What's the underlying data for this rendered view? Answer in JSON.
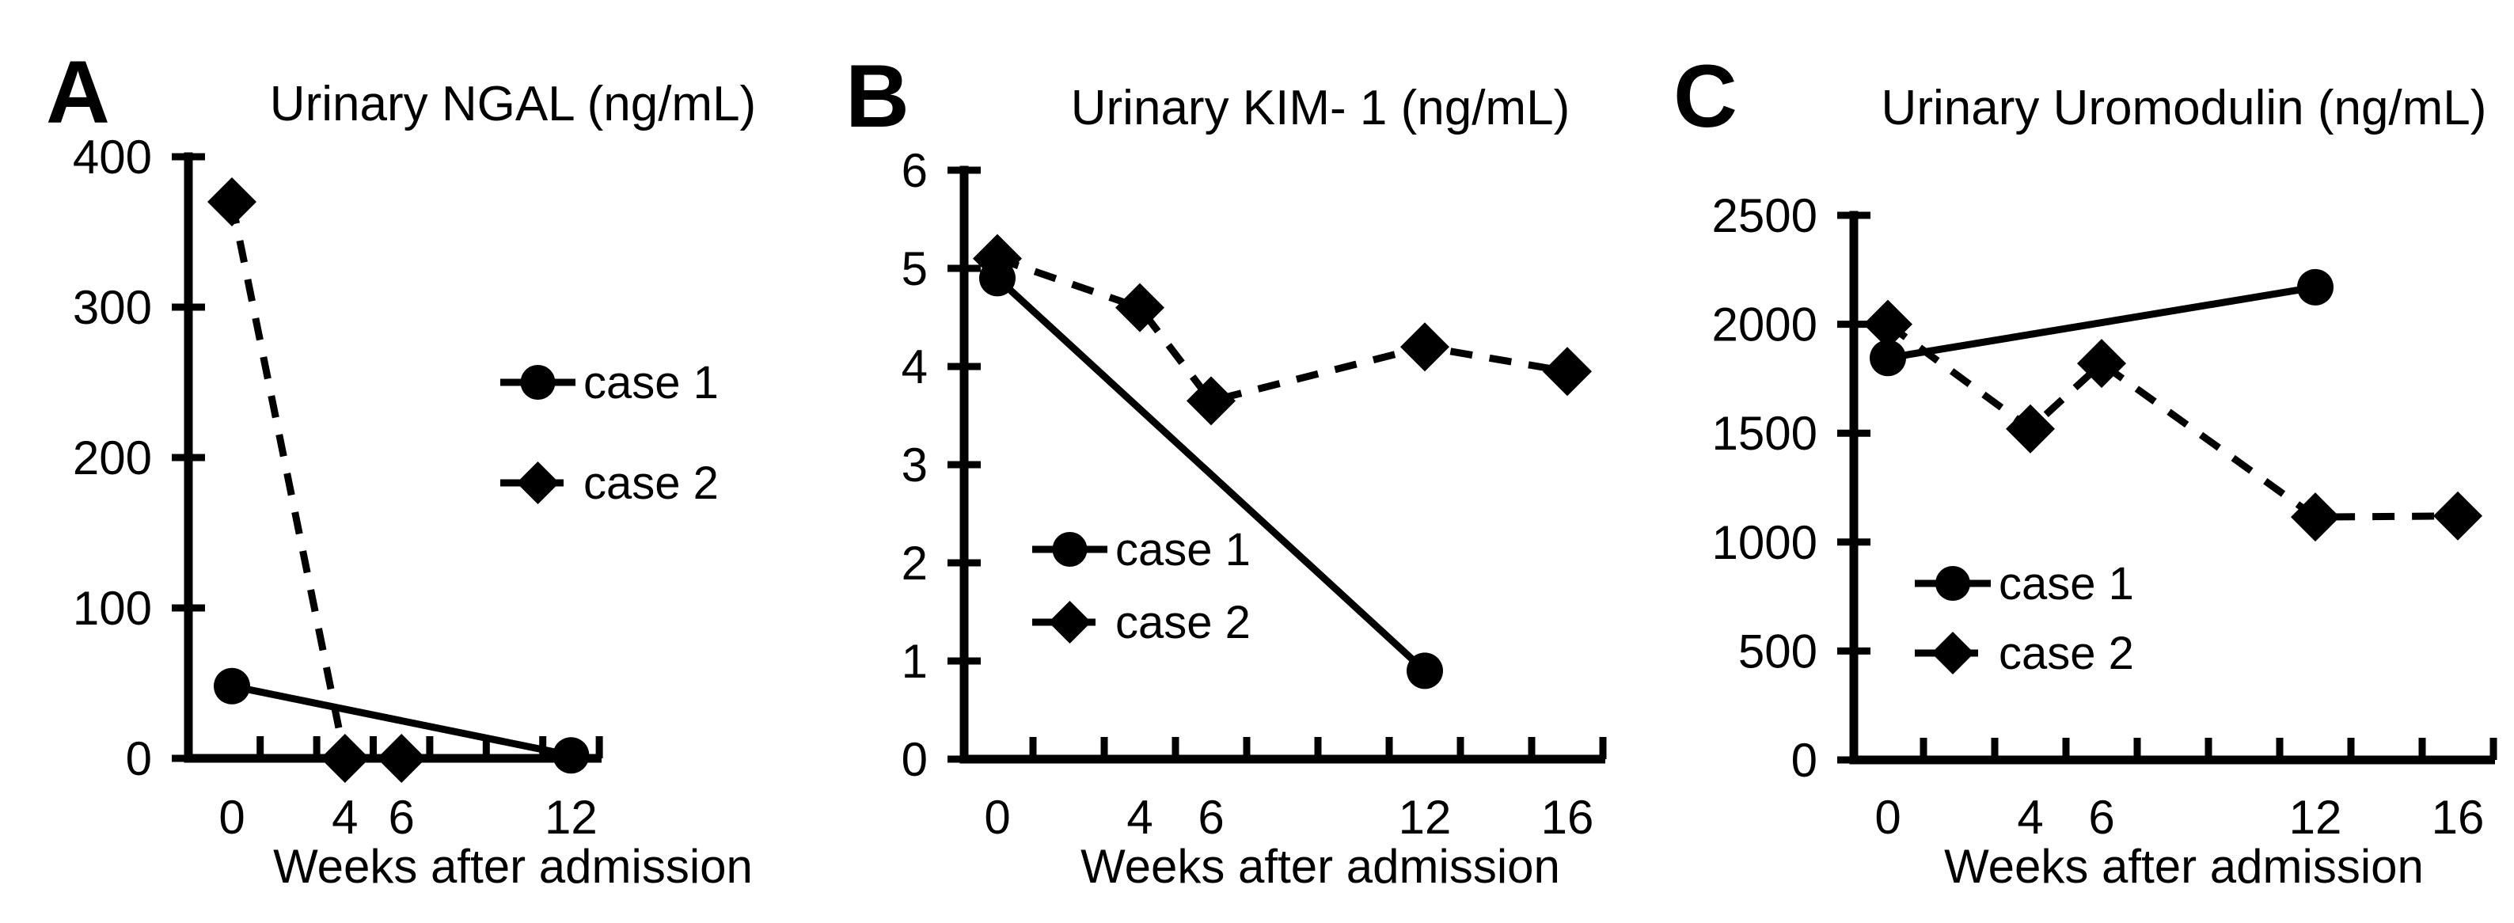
{
  "figure": {
    "background": "#ffffff",
    "ink_color": "#000000",
    "x_axis_label": "Weeks after admission",
    "legend_labels": [
      "case 1",
      "case 2"
    ]
  },
  "chart_data": {
    "type": "line",
    "panels": [
      {
        "letter": "A",
        "title": "Urinary NGAL (ng/mL)",
        "xlabel": "Weeks after admission",
        "ylabel": "",
        "ylim": [
          0,
          400
        ],
        "yticks": [
          0,
          100,
          200,
          300,
          400
        ],
        "xlim": [
          -1,
          13.2
        ],
        "xtick_marks": [
          1,
          3,
          5,
          7,
          9,
          11,
          13
        ],
        "xtick_labels": [
          0,
          4,
          6,
          12
        ],
        "grid": false,
        "legend_position": "center-right",
        "series": [
          {
            "name": "case 1",
            "marker": "circle",
            "line": "solid",
            "points": [
              [
                0,
                48
              ],
              [
                12,
                2
              ]
            ]
          },
          {
            "name": "case 2",
            "marker": "diamond",
            "line": "dashed",
            "points": [
              [
                0,
                370
              ],
              [
                4,
                0
              ],
              [
                6,
                0
              ]
            ]
          }
        ]
      },
      {
        "letter": "B",
        "title": "Urinary KIM- 1 (ng/mL)",
        "xlabel": "Weeks after admission",
        "ylabel": "",
        "ylim": [
          0,
          6
        ],
        "yticks": [
          0,
          1,
          2,
          3,
          4,
          5,
          6
        ],
        "xlim": [
          -1,
          17
        ],
        "xtick_marks": [
          1,
          3,
          5,
          7,
          9,
          11,
          13,
          15,
          17
        ],
        "xtick_labels": [
          0,
          4,
          6,
          12,
          16
        ],
        "grid": false,
        "legend_position": "lower-left",
        "series": [
          {
            "name": "case 1",
            "marker": "circle",
            "line": "solid",
            "points": [
              [
                0,
                4.9
              ],
              [
                12,
                0.9
              ]
            ]
          },
          {
            "name": "case 2",
            "marker": "diamond",
            "line": "dashed",
            "points": [
              [
                0,
                5.1
              ],
              [
                4,
                4.6
              ],
              [
                6,
                3.65
              ],
              [
                12,
                4.2
              ],
              [
                16,
                3.95
              ]
            ]
          }
        ]
      },
      {
        "letter": "C",
        "title": "Urinary Uromodulin (ng/mL)",
        "xlabel": "Weeks after admission",
        "ylabel": "",
        "ylim": [
          0,
          2500
        ],
        "yticks": [
          0,
          500,
          1000,
          1500,
          2000,
          2500
        ],
        "xlim": [
          -1,
          17
        ],
        "xtick_marks": [
          1,
          3,
          5,
          7,
          9,
          11,
          13,
          15,
          17
        ],
        "xtick_labels": [
          0,
          4,
          6,
          12,
          16
        ],
        "grid": false,
        "legend_position": "lower-left",
        "series": [
          {
            "name": "case 1",
            "marker": "circle",
            "line": "solid",
            "points": [
              [
                0,
                1845
              ],
              [
                12,
                2170
              ]
            ]
          },
          {
            "name": "case 2",
            "marker": "diamond",
            "line": "dashed",
            "points": [
              [
                0,
                2000
              ],
              [
                4,
                1520
              ],
              [
                6,
                1820
              ],
              [
                12,
                1115
              ],
              [
                16,
                1120
              ]
            ]
          }
        ]
      }
    ]
  }
}
